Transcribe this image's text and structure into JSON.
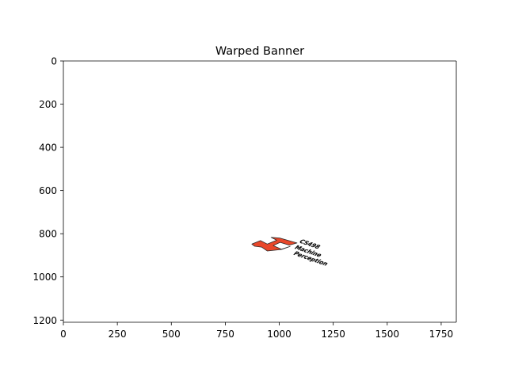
{
  "chart_data": {
    "type": "image",
    "title": "Warped Banner",
    "xlabel": "",
    "ylabel": "",
    "xlim": [
      0,
      1820
    ],
    "ylim": [
      1210,
      0
    ],
    "x_ticks": [
      0,
      250,
      500,
      750,
      1000,
      1250,
      1500,
      1750
    ],
    "y_ticks": [
      0,
      200,
      400,
      600,
      800,
      1000,
      1200
    ],
    "grid": false,
    "background": "#ffffff",
    "banner": {
      "logo_color": "#e8472a",
      "outline_color": "#2a2a2a",
      "text_lines": [
        "CS498",
        "Machine",
        "Perception"
      ],
      "logo_polygon": [
        [
          873,
          848
        ],
        [
          913,
          832
        ],
        [
          945,
          848
        ],
        [
          988,
          830
        ],
        [
          962,
          817
        ],
        [
          1002,
          820
        ],
        [
          1082,
          843
        ],
        [
          1046,
          853
        ],
        [
          1004,
          840
        ],
        [
          972,
          855
        ],
        [
          1010,
          872
        ],
        [
          1050,
          859
        ],
        [
          1010,
          873
        ],
        [
          945,
          880
        ],
        [
          918,
          862
        ],
        [
          886,
          858
        ]
      ],
      "text_anchor": [
        1075,
        875
      ],
      "text_line_step": [
        0,
        28
      ],
      "text_skew_angle": 19
    }
  }
}
